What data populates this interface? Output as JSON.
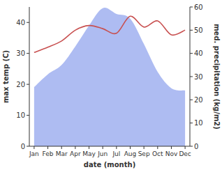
{
  "chart_data": {
    "type": "line",
    "x_label": "date (month)",
    "y_label": "max temp (C)",
    "y2_label": "med. precipitation (kg/m2)",
    "categories": [
      "Jan",
      "Feb",
      "Mar",
      "Apr",
      "May",
      "Jun",
      "Jul",
      "Aug",
      "Sep",
      "Oct",
      "Nov",
      "Dec"
    ],
    "series": [
      {
        "type": "area",
        "axis": "y2",
        "color": "#aebcf2",
        "values": [
          25.5,
          31,
          35,
          43,
          52,
          59.5,
          57,
          55,
          44,
          32,
          25,
          24
        ]
      },
      {
        "type": "line",
        "color": "#c85050",
        "values": [
          30.3,
          32,
          34,
          37.5,
          39,
          38,
          36.5,
          42,
          38.5,
          40.5,
          36,
          37.5
        ]
      }
    ],
    "ylim": [
      0,
      45
    ],
    "yticks": [
      0,
      10,
      20,
      30,
      40
    ],
    "y2lim": [
      0,
      60
    ],
    "y2ticks": [
      0,
      10,
      20,
      30,
      40,
      50,
      60
    ],
    "grid": false
  }
}
